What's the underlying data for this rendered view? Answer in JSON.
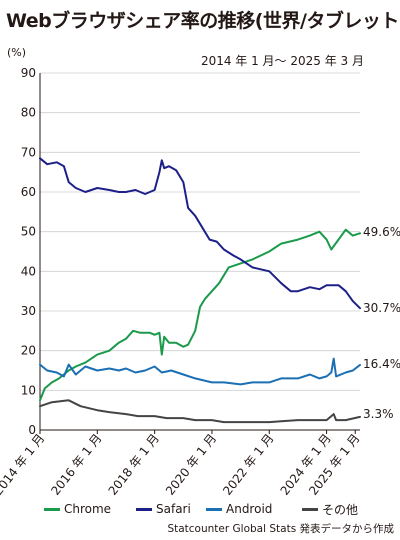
{
  "title": "Webブラウザシェア率の推移(世界/タブレット)",
  "unit": "(%)",
  "period": "2014 年 1 月〜 2025 年 3 月",
  "source": "Statcounter Global Stats 発表データから作成",
  "colors": {
    "Chrome": "#1a9a4a",
    "Safari": "#1d2088",
    "Android": "#1b6fb5",
    "その他": "#444444",
    "grid": "#cfcfcf",
    "axis": "#231815"
  },
  "chart_data": {
    "type": "line",
    "x_range": [
      "2014-01",
      "2025-03"
    ],
    "x_ticks": [
      "2014 年 1 月",
      "2016 年 1 月",
      "2018 年 1 月",
      "2020 年 1 月",
      "2022 年 1 月",
      "2024 年 1 月",
      "2025 年 1 月"
    ],
    "y_ticks": [
      0,
      10,
      20,
      30,
      40,
      50,
      60,
      70,
      80,
      90
    ],
    "ylim": [
      0,
      90
    ],
    "grid": "horizontal",
    "legend_position": "bottom",
    "end_labels": [
      "49.6%",
      "30.7%",
      "16.4%",
      "3.3%"
    ],
    "series": [
      {
        "name": "Chrome",
        "points": [
          [
            "2014-01",
            7.5
          ],
          [
            "2014-03",
            10.5
          ],
          [
            "2014-06",
            12.0
          ],
          [
            "2014-09",
            13.0
          ],
          [
            "2015-01",
            15.0
          ],
          [
            "2015-04",
            16.0
          ],
          [
            "2015-08",
            17.0
          ],
          [
            "2016-01",
            19.0
          ],
          [
            "2016-06",
            20.0
          ],
          [
            "2016-10",
            22.0
          ],
          [
            "2017-01",
            23.0
          ],
          [
            "2017-04",
            25.0
          ],
          [
            "2017-07",
            24.5
          ],
          [
            "2017-11",
            24.5
          ],
          [
            "2018-01",
            24.0
          ],
          [
            "2018-03",
            24.5
          ],
          [
            "2018-04",
            19.0
          ],
          [
            "2018-05",
            23.5
          ],
          [
            "2018-07",
            22.0
          ],
          [
            "2018-10",
            22.0
          ],
          [
            "2019-01",
            21.0
          ],
          [
            "2019-03",
            21.5
          ],
          [
            "2019-06",
            25.0
          ],
          [
            "2019-08",
            31.0
          ],
          [
            "2019-10",
            33.0
          ],
          [
            "2020-01",
            35.0
          ],
          [
            "2020-04",
            37.0
          ],
          [
            "2020-08",
            41.0
          ],
          [
            "2021-01",
            42.0
          ],
          [
            "2021-06",
            43.0
          ],
          [
            "2022-01",
            45.0
          ],
          [
            "2022-06",
            47.0
          ],
          [
            "2023-01",
            48.0
          ],
          [
            "2023-06",
            49.0
          ],
          [
            "2023-10",
            50.0
          ],
          [
            "2024-01",
            48.0
          ],
          [
            "2024-03",
            45.5
          ],
          [
            "2024-06",
            48.0
          ],
          [
            "2024-09",
            50.5
          ],
          [
            "2024-12",
            49.0
          ],
          [
            "2025-03",
            49.6
          ]
        ]
      },
      {
        "name": "Safari",
        "points": [
          [
            "2014-01",
            68.5
          ],
          [
            "2014-04",
            67.0
          ],
          [
            "2014-08",
            67.5
          ],
          [
            "2014-11",
            66.5
          ],
          [
            "2015-01",
            62.5
          ],
          [
            "2015-04",
            61.0
          ],
          [
            "2015-08",
            60.0
          ],
          [
            "2016-01",
            61.0
          ],
          [
            "2016-06",
            60.5
          ],
          [
            "2016-10",
            60.0
          ],
          [
            "2017-01",
            60.0
          ],
          [
            "2017-05",
            60.5
          ],
          [
            "2017-09",
            59.5
          ],
          [
            "2018-01",
            60.5
          ],
          [
            "2018-03",
            65.0
          ],
          [
            "2018-04",
            68.0
          ],
          [
            "2018-05",
            66.0
          ],
          [
            "2018-07",
            66.5
          ],
          [
            "2018-10",
            65.5
          ],
          [
            "2019-01",
            62.5
          ],
          [
            "2019-03",
            56.0
          ],
          [
            "2019-06",
            54.0
          ],
          [
            "2019-09",
            51.0
          ],
          [
            "2019-12",
            48.0
          ],
          [
            "2020-03",
            47.5
          ],
          [
            "2020-06",
            45.5
          ],
          [
            "2020-10",
            44.0
          ],
          [
            "2021-01",
            43.0
          ],
          [
            "2021-06",
            41.0
          ],
          [
            "2022-01",
            40.0
          ],
          [
            "2022-06",
            37.0
          ],
          [
            "2022-10",
            35.0
          ],
          [
            "2023-01",
            35.0
          ],
          [
            "2023-06",
            36.0
          ],
          [
            "2023-10",
            35.5
          ],
          [
            "2024-01",
            36.5
          ],
          [
            "2024-06",
            36.5
          ],
          [
            "2024-09",
            35.0
          ],
          [
            "2024-12",
            32.5
          ],
          [
            "2025-03",
            30.7
          ]
        ]
      },
      {
        "name": "Android",
        "points": [
          [
            "2014-01",
            16.5
          ],
          [
            "2014-04",
            15.0
          ],
          [
            "2014-08",
            14.5
          ],
          [
            "2014-11",
            13.5
          ],
          [
            "2015-01",
            16.5
          ],
          [
            "2015-04",
            14.0
          ],
          [
            "2015-08",
            16.0
          ],
          [
            "2016-01",
            15.0
          ],
          [
            "2016-06",
            15.5
          ],
          [
            "2016-10",
            15.0
          ],
          [
            "2017-01",
            15.5
          ],
          [
            "2017-05",
            14.5
          ],
          [
            "2017-09",
            15.0
          ],
          [
            "2018-01",
            16.0
          ],
          [
            "2018-04",
            14.5
          ],
          [
            "2018-08",
            15.0
          ],
          [
            "2019-01",
            14.0
          ],
          [
            "2019-06",
            13.0
          ],
          [
            "2020-01",
            12.0
          ],
          [
            "2020-06",
            12.0
          ],
          [
            "2021-01",
            11.5
          ],
          [
            "2021-06",
            12.0
          ],
          [
            "2022-01",
            12.0
          ],
          [
            "2022-06",
            13.0
          ],
          [
            "2023-01",
            13.0
          ],
          [
            "2023-06",
            14.0
          ],
          [
            "2023-10",
            13.0
          ],
          [
            "2024-01",
            13.5
          ],
          [
            "2024-03",
            14.5
          ],
          [
            "2024-04",
            18.0
          ],
          [
            "2024-05",
            13.5
          ],
          [
            "2024-09",
            14.5
          ],
          [
            "2024-12",
            15.0
          ],
          [
            "2025-03",
            16.4
          ]
        ]
      },
      {
        "name": "その他",
        "points": [
          [
            "2014-01",
            6.0
          ],
          [
            "2014-06",
            7.0
          ],
          [
            "2015-01",
            7.5
          ],
          [
            "2015-06",
            6.0
          ],
          [
            "2016-01",
            5.0
          ],
          [
            "2016-06",
            4.5
          ],
          [
            "2017-01",
            4.0
          ],
          [
            "2017-06",
            3.5
          ],
          [
            "2018-01",
            3.5
          ],
          [
            "2018-06",
            3.0
          ],
          [
            "2019-01",
            3.0
          ],
          [
            "2019-06",
            2.5
          ],
          [
            "2020-01",
            2.5
          ],
          [
            "2020-06",
            2.0
          ],
          [
            "2021-01",
            2.0
          ],
          [
            "2022-01",
            2.0
          ],
          [
            "2022-06",
            2.2
          ],
          [
            "2023-01",
            2.5
          ],
          [
            "2023-06",
            2.5
          ],
          [
            "2024-01",
            2.5
          ],
          [
            "2024-04",
            4.0
          ],
          [
            "2024-05",
            2.5
          ],
          [
            "2024-09",
            2.5
          ],
          [
            "2025-03",
            3.3
          ]
        ]
      }
    ]
  }
}
